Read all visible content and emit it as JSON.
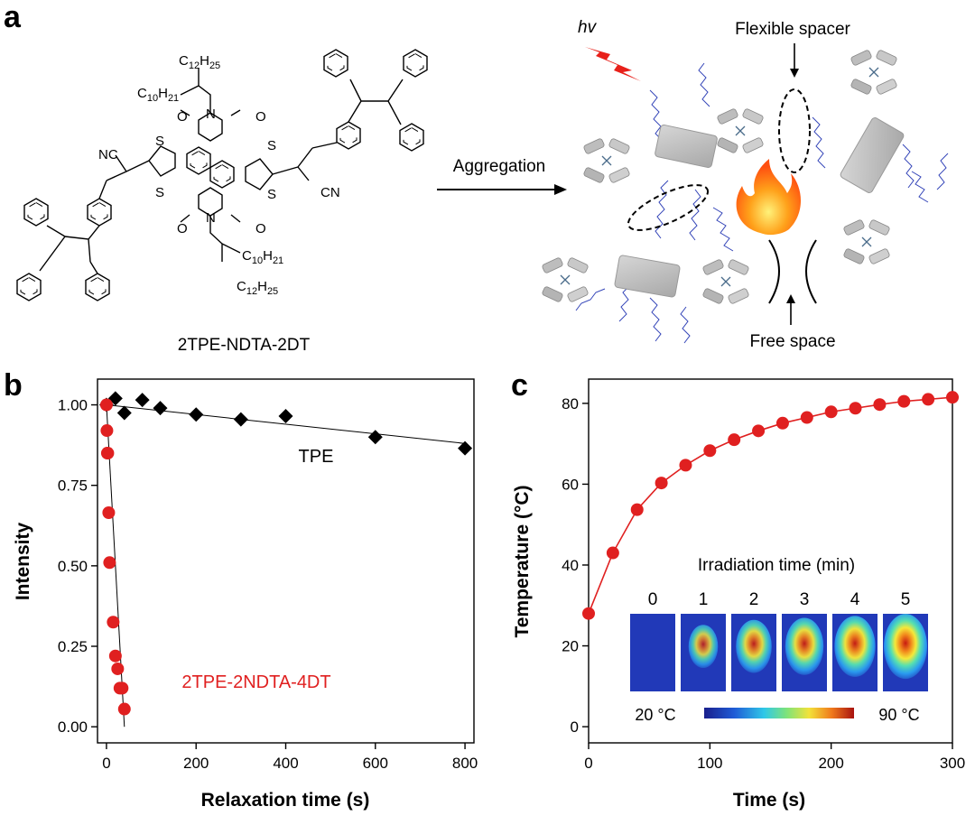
{
  "panels": {
    "a": {
      "letter": "a",
      "molecule_name": "2TPE-NDTA-2DT",
      "chem_labels": {
        "alkyl_top_a": "C",
        "alkyl_top_a_sub": "12",
        "alkyl_top_a_h": "H",
        "alkyl_top_a_hsub": "25",
        "alkyl_top_b": "C",
        "alkyl_top_b_sub": "10",
        "alkyl_top_b_h": "H",
        "alkyl_top_b_hsub": "21",
        "nc": "NC",
        "cn": "CN",
        "n": "N",
        "o": "O",
        "s": "S"
      },
      "arrow_label": "Aggregation",
      "hv": "hv",
      "flexible_spacer": "Flexible spacer",
      "free_space": "Free space"
    },
    "b": {
      "letter": "b"
    },
    "c": {
      "letter": "c",
      "inset": {
        "title": "Irradiation time  (min)",
        "times": [
          "0",
          "1",
          "2",
          "3",
          "4",
          "5"
        ],
        "hotspot_strength": [
          0,
          0.45,
          0.7,
          0.8,
          0.9,
          1.0
        ],
        "scale_min_label": "20 °C",
        "scale_max_label": "90 °C"
      }
    }
  },
  "chart_data": [
    {
      "panel": "b",
      "type": "scatter",
      "xlabel": "Relaxation time (s)",
      "ylabel": "Intensity",
      "xlim": [
        -20,
        820
      ],
      "ylim": [
        -0.05,
        1.08
      ],
      "xticks": [
        "0",
        "200",
        "400",
        "600",
        "800"
      ],
      "yticks": [
        "0.00",
        "0.25",
        "0.50",
        "0.75",
        "1.00"
      ],
      "series": [
        {
          "name": "TPE",
          "color": "#000000",
          "marker": "diamond",
          "x": [
            0,
            20,
            40,
            80,
            120,
            200,
            300,
            400,
            600,
            800
          ],
          "y": [
            1.0,
            1.02,
            0.975,
            1.015,
            0.99,
            0.97,
            0.955,
            0.965,
            0.9,
            0.865
          ],
          "fit": [
            [
              0,
              1.0
            ],
            [
              800,
              0.88
            ]
          ]
        },
        {
          "name": "2TPE-2NDTA-4DT",
          "color": "#e02020",
          "marker": "circle",
          "x": [
            0,
            1,
            2,
            3,
            5,
            7,
            15,
            20,
            25,
            30,
            35,
            40
          ],
          "y": [
            1.0,
            0.92,
            0.85,
            0.85,
            0.665,
            0.51,
            0.325,
            0.22,
            0.18,
            0.12,
            0.12,
            0.055
          ],
          "fit": [
            [
              0,
              1.0
            ],
            [
              40,
              0.0
            ]
          ]
        }
      ]
    },
    {
      "panel": "c",
      "type": "line",
      "xlabel": "Time (s)",
      "ylabel": "Temperature (°C)",
      "xlim": [
        0,
        300
      ],
      "ylim": [
        -4,
        86
      ],
      "xticks": [
        "0",
        "100",
        "200",
        "300"
      ],
      "yticks": [
        "0",
        "20",
        "40",
        "60",
        "80"
      ],
      "series": [
        {
          "color": "#e02020",
          "marker": "circle",
          "x": [
            0,
            20,
            40,
            60,
            80,
            100,
            120,
            140,
            160,
            180,
            200,
            220,
            240,
            260,
            280,
            300
          ],
          "y": [
            28,
            43,
            53.7,
            60.3,
            64.7,
            68.3,
            71,
            73.2,
            75.1,
            76.5,
            77.9,
            78.8,
            79.7,
            80.5,
            81,
            81.5
          ]
        }
      ]
    }
  ]
}
